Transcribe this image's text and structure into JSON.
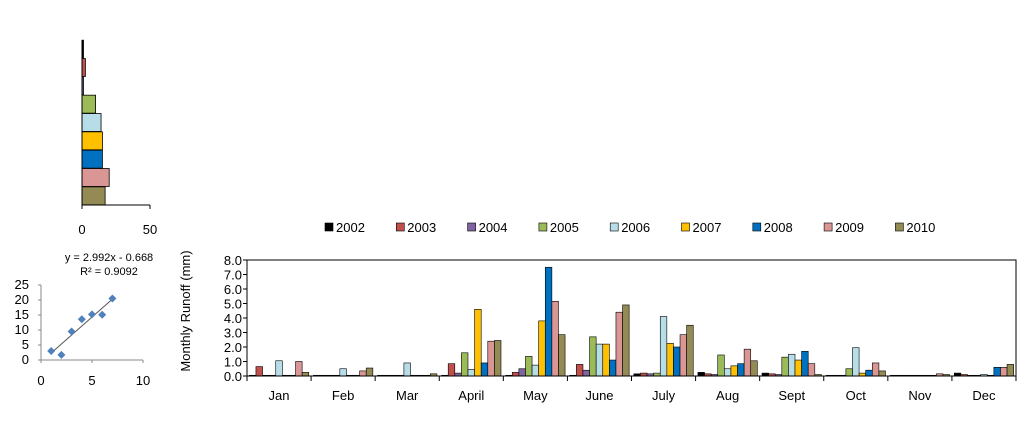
{
  "colors": {
    "2002": "#000000",
    "2003": "#C0504D",
    "2004": "#8064A2",
    "2005": "#9BBB59",
    "2006": "#B7DEE8",
    "2007": "#FFC000",
    "2008": "#0070C0",
    "2009": "#D99694",
    "2010": "#948A54",
    "scatter_marker": "#4F81BD"
  },
  "chart_data": [
    {
      "type": "bar",
      "orientation": "horizontal",
      "categories": [
        "2002",
        "2003",
        "2004",
        "2005",
        "2006",
        "2007",
        "2008",
        "2009",
        "2010"
      ],
      "values": [
        0.5,
        2.5,
        0.5,
        10,
        14,
        15,
        15,
        20,
        17
      ],
      "xlim": [
        0,
        50
      ],
      "xticks": [
        "0",
        "50"
      ],
      "grid": false
    },
    {
      "type": "scatter",
      "x": [
        1,
        2,
        3,
        4,
        5,
        6,
        7
      ],
      "y": [
        3.0,
        1.7,
        9.5,
        13.6,
        15.2,
        15.1,
        20.5
      ],
      "xlim": [
        0,
        10
      ],
      "ylim": [
        0,
        25
      ],
      "xticks": [
        "0",
        "5",
        "10"
      ],
      "yticks": [
        "0",
        "5",
        "10",
        "15",
        "20",
        "25"
      ],
      "trendline": {
        "slope": 2.992,
        "intercept": -0.668
      },
      "equation": "y = 2.992x - 0.668",
      "r2": "R² = 0.9092"
    },
    {
      "type": "bar",
      "categories": [
        "Jan",
        "Feb",
        "Mar",
        "April",
        "May",
        "June",
        "July",
        "Aug",
        "Sept",
        "Oct",
        "Nov",
        "Dec"
      ],
      "series": [
        {
          "name": "2002",
          "values": [
            0.05,
            0.05,
            0.05,
            0.05,
            0.05,
            0.05,
            0.15,
            0.25,
            0.2,
            0.05,
            0.05,
            0.2
          ]
        },
        {
          "name": "2003",
          "values": [
            0.65,
            0.05,
            0.05,
            0.85,
            0.25,
            0.8,
            0.2,
            0.15,
            0.15,
            0.05,
            0.05,
            0.1
          ]
        },
        {
          "name": "2004",
          "values": [
            0.05,
            0.05,
            0.05,
            0.2,
            0.5,
            0.4,
            0.15,
            0.1,
            0.1,
            0.05,
            0.05,
            0.05
          ]
        },
        {
          "name": "2005",
          "values": [
            0.05,
            0.05,
            0.05,
            1.6,
            1.35,
            2.7,
            0.2,
            1.45,
            1.3,
            0.5,
            0.05,
            0.05
          ]
        },
        {
          "name": "2006",
          "values": [
            1.05,
            0.5,
            0.9,
            0.45,
            0.75,
            2.2,
            4.1,
            0.5,
            1.5,
            1.95,
            0.05,
            0.1
          ]
        },
        {
          "name": "2007",
          "values": [
            0.05,
            0.05,
            0.05,
            4.6,
            3.8,
            2.2,
            2.25,
            0.7,
            1.1,
            0.2,
            0.05,
            0.05
          ]
        },
        {
          "name": "2008",
          "values": [
            0.05,
            0.05,
            0.05,
            0.9,
            7.5,
            1.1,
            2.0,
            0.85,
            1.7,
            0.4,
            0.05,
            0.6
          ]
        },
        {
          "name": "2009",
          "values": [
            1.0,
            0.35,
            0.05,
            2.4,
            5.15,
            4.4,
            2.85,
            1.85,
            0.85,
            0.9,
            0.15,
            0.6
          ]
        },
        {
          "name": "2010",
          "values": [
            0.25,
            0.55,
            0.15,
            2.45,
            2.85,
            4.9,
            3.5,
            1.05,
            0.1,
            0.35,
            0.1,
            0.8
          ]
        }
      ],
      "ylabel": "Monthly  Runoff (mm)",
      "xlabel": "",
      "ylim": [
        0,
        8
      ],
      "yticks": [
        "0.0",
        "1.0",
        "2.0",
        "3.0",
        "4.0",
        "5.0",
        "6.0",
        "7.0",
        "8.0"
      ],
      "legend": "top",
      "grid": false
    }
  ]
}
